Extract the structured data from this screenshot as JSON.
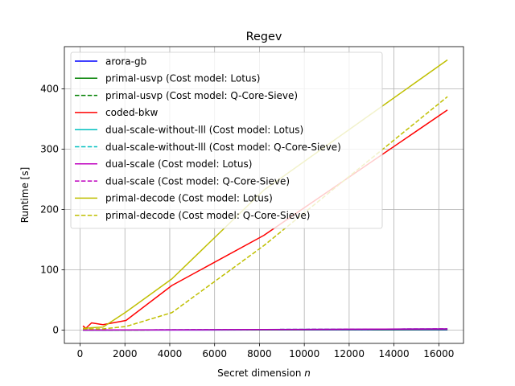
{
  "chart_data": {
    "type": "line",
    "title": "Regev",
    "xlabel": "Secret dimension",
    "xlabel_var": "n",
    "ylabel": "Runtime [s]",
    "xlim": [
      -700,
      17100
    ],
    "ylim": [
      -22,
      470
    ],
    "xticks": [
      0,
      2000,
      4000,
      6000,
      8000,
      10000,
      12000,
      14000,
      16000
    ],
    "xtick_labels": [
      "0",
      "2000",
      "4000",
      "6000",
      "8000",
      "10000",
      "12000",
      "14000",
      "16000"
    ],
    "yticks": [
      0,
      100,
      200,
      300,
      400
    ],
    "ytick_labels": [
      "0",
      "100",
      "200",
      "300",
      "400"
    ],
    "grid": true,
    "legend_position": "top-left",
    "series": [
      {
        "name": "arora-gb",
        "color": "#0000ff",
        "dash": "solid",
        "x": [
          128,
          256,
          512,
          1024,
          2048,
          4096,
          8192,
          16384
        ],
        "y": [
          0.05,
          0.05,
          0.06,
          0.08,
          0.1,
          0.15,
          0.3,
          0.5
        ]
      },
      {
        "name": "primal-usvp (Cost model: Lotus)",
        "color": "#008000",
        "dash": "solid",
        "x": [
          128,
          256,
          512,
          1024,
          2048,
          4096,
          8192,
          16384
        ],
        "y": [
          0.1,
          0.1,
          0.12,
          0.15,
          0.2,
          0.3,
          0.6,
          1.2
        ]
      },
      {
        "name": "primal-usvp (Cost model: Q-Core-Sieve)",
        "color": "#008000",
        "dash": "dashed",
        "x": [
          128,
          256,
          512,
          1024,
          2048,
          4096,
          8192,
          16384
        ],
        "y": [
          0.1,
          0.1,
          0.12,
          0.15,
          0.2,
          0.3,
          0.6,
          1.2
        ]
      },
      {
        "name": "coded-bkw",
        "color": "#ff0000",
        "dash": "solid",
        "x": [
          128,
          256,
          512,
          1024,
          2048,
          4096,
          8192,
          16384
        ],
        "y": [
          7,
          3,
          12,
          9,
          16,
          74,
          157,
          365
        ]
      },
      {
        "name": "dual-scale-without-lll (Cost model: Lotus)",
        "color": "#00bfbf",
        "dash": "solid",
        "x": [
          128,
          256,
          512,
          1024,
          2048,
          4096,
          8192,
          16384
        ],
        "y": [
          0.1,
          0.1,
          0.15,
          0.2,
          0.3,
          0.5,
          1.0,
          2.0
        ]
      },
      {
        "name": "dual-scale-without-lll (Cost model: Q-Core-Sieve)",
        "color": "#00bfbf",
        "dash": "dashed",
        "x": [
          128,
          256,
          512,
          1024,
          2048,
          4096,
          8192,
          16384
        ],
        "y": [
          0.1,
          0.1,
          0.15,
          0.2,
          0.3,
          0.5,
          1.0,
          2.0
        ]
      },
      {
        "name": "dual-scale (Cost model: Lotus)",
        "color": "#bf00bf",
        "dash": "solid",
        "x": [
          128,
          256,
          512,
          1024,
          2048,
          4096,
          8192,
          16384
        ],
        "y": [
          0.1,
          0.1,
          0.15,
          0.2,
          0.3,
          0.5,
          1.0,
          2.0
        ]
      },
      {
        "name": "dual-scale (Cost model: Q-Core-Sieve)",
        "color": "#bf00bf",
        "dash": "dashed",
        "x": [
          128,
          256,
          512,
          1024,
          2048,
          4096,
          8192,
          16384
        ],
        "y": [
          0.1,
          0.1,
          0.15,
          0.2,
          0.3,
          0.5,
          1.0,
          2.0
        ]
      },
      {
        "name": "primal-decode (Cost model: Lotus)",
        "color": "#bfbf00",
        "dash": "solid",
        "x": [
          128,
          256,
          512,
          1024,
          2048,
          4096,
          8192,
          16384
        ],
        "y": [
          3,
          3,
          4,
          5,
          30,
          85,
          232,
          448
        ]
      },
      {
        "name": "primal-decode (Cost model: Q-Core-Sieve)",
        "color": "#bfbf00",
        "dash": "dashed",
        "x": [
          128,
          256,
          512,
          1024,
          2048,
          4096,
          8192,
          16384
        ],
        "y": [
          2,
          2,
          2,
          2,
          6,
          29,
          140,
          387
        ]
      }
    ]
  }
}
